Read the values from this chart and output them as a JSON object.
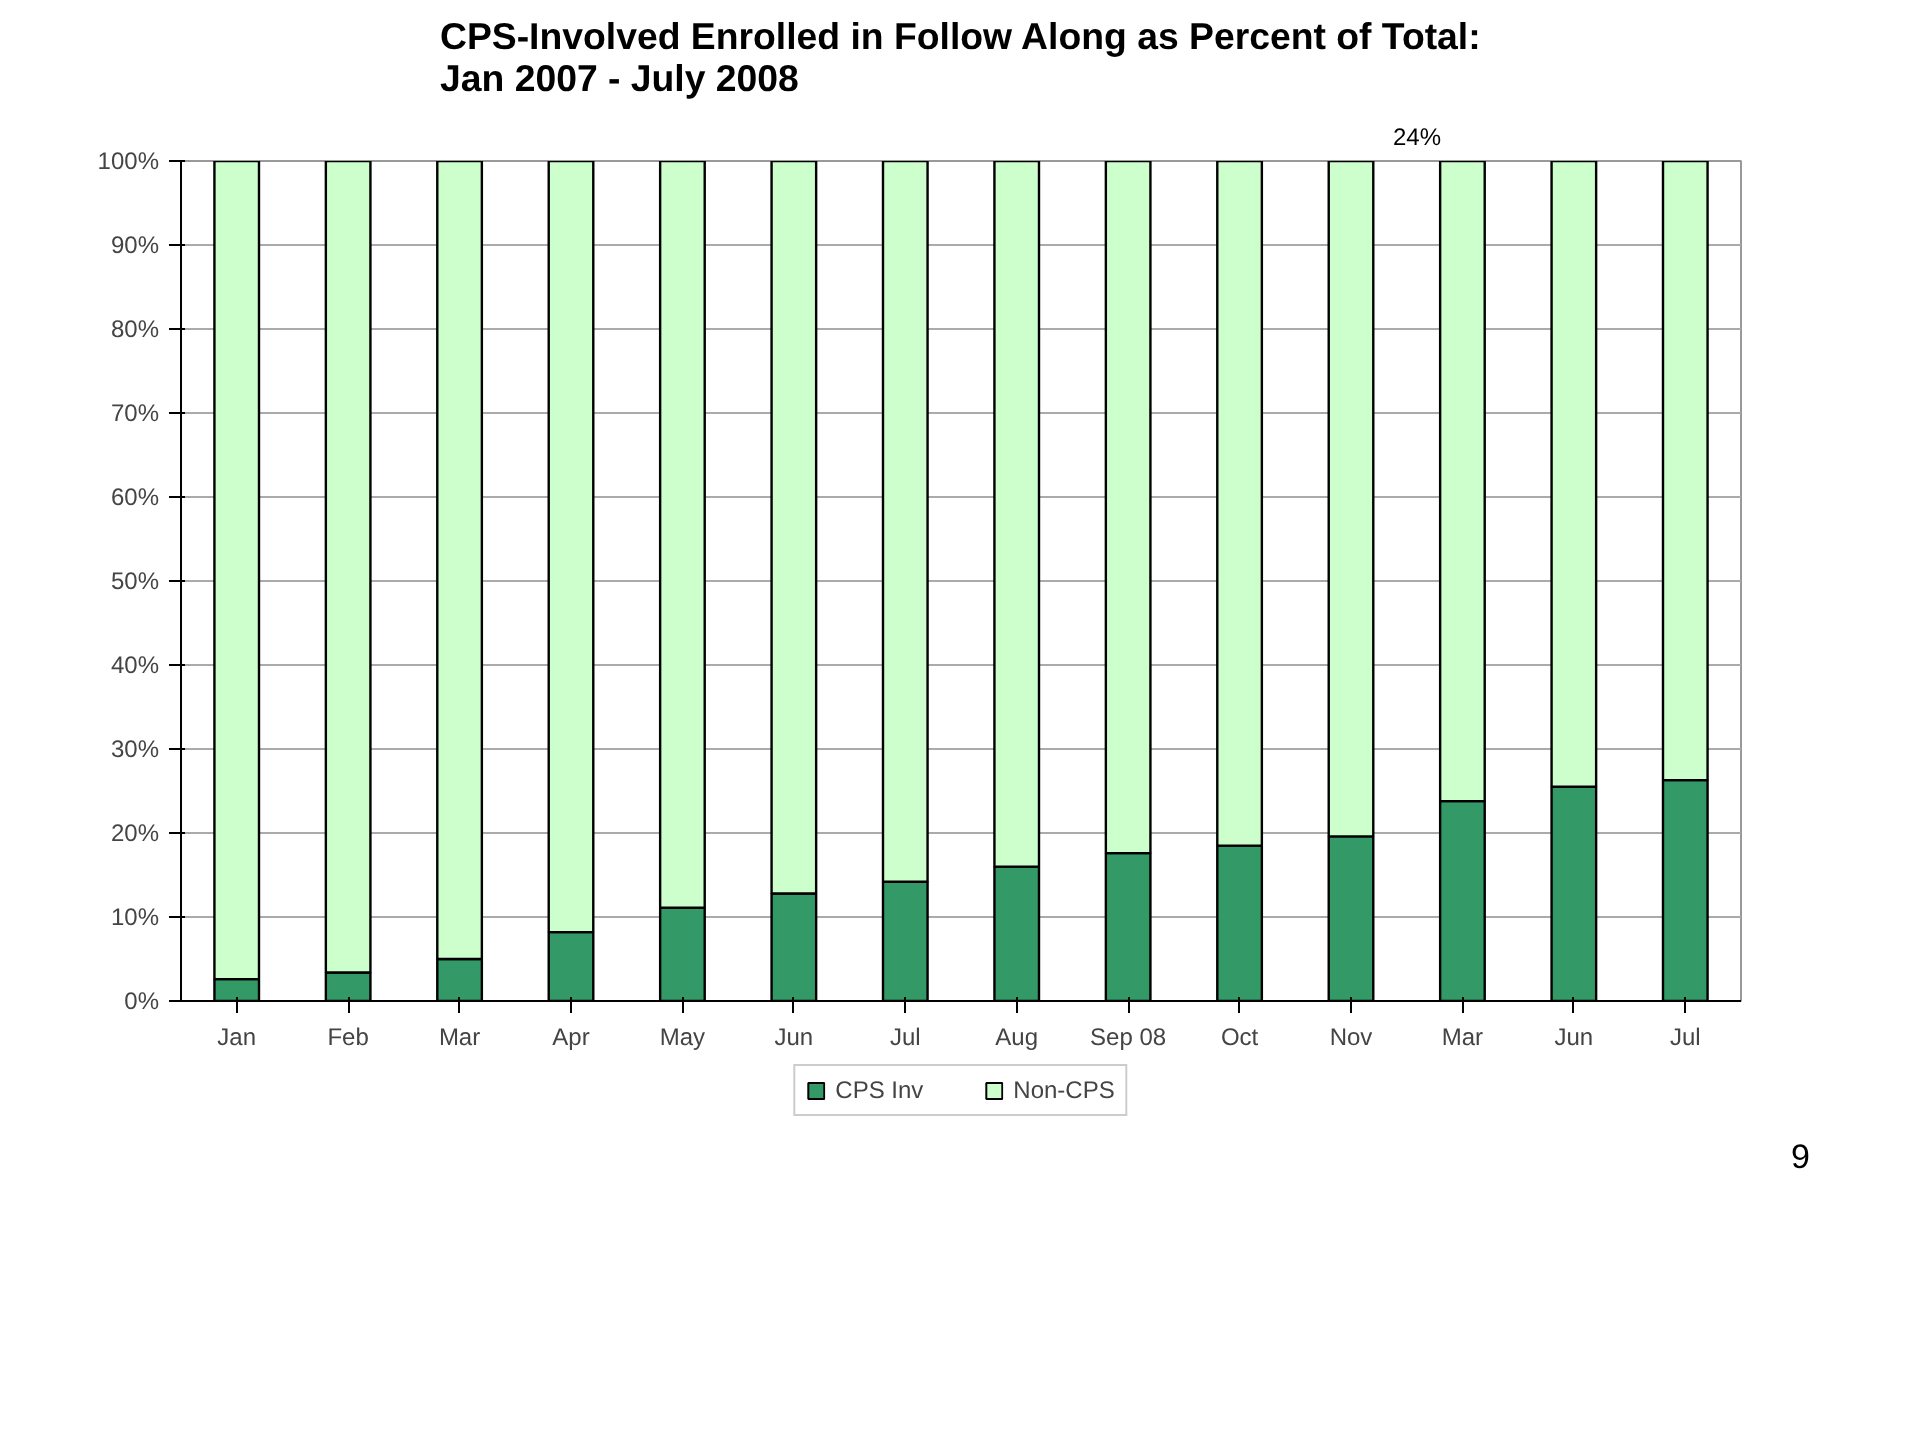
{
  "chart_data": {
    "type": "bar",
    "stacked": true,
    "title": "CPS-Involved Enrolled in Follow Along as Percent of Total:\nJan 2007 -  July 2008",
    "categories": [
      "Jan",
      "Feb",
      "Mar",
      "Apr",
      "May",
      "Jun",
      "Jul",
      "Aug",
      "Sep 08",
      "Oct",
      "Nov",
      "Mar",
      "Jun",
      "Jul"
    ],
    "series": [
      {
        "name": "CPS Inv",
        "color": "#339966",
        "values": [
          2.6,
          3.4,
          5.0,
          8.2,
          11.1,
          12.8,
          14.2,
          16.0,
          17.6,
          18.5,
          19.6,
          23.8,
          25.5,
          26.3
        ]
      },
      {
        "name": "Non-CPS",
        "color": "#ccffcc",
        "values": [
          97.4,
          96.6,
          95.0,
          91.8,
          88.9,
          87.2,
          85.8,
          84.0,
          82.4,
          81.5,
          80.4,
          76.2,
          74.5,
          73.7
        ]
      }
    ],
    "ylim": [
      0,
      100
    ],
    "yticks": [
      {
        "value": 0,
        "label": "0%"
      },
      {
        "value": 10,
        "label": "10%"
      },
      {
        "value": 20,
        "label": "20%"
      },
      {
        "value": 30,
        "label": "30%"
      },
      {
        "value": 40,
        "label": "40%"
      },
      {
        "value": 50,
        "label": "50%"
      },
      {
        "value": 60,
        "label": "60%"
      },
      {
        "value": 70,
        "label": "70%"
      },
      {
        "value": 80,
        "label": "80%"
      },
      {
        "value": 90,
        "label": "90%"
      },
      {
        "value": 100,
        "label": "100%"
      }
    ],
    "grid": "y",
    "legend": "bottom",
    "annotations": [
      "24%",
      "9"
    ]
  }
}
